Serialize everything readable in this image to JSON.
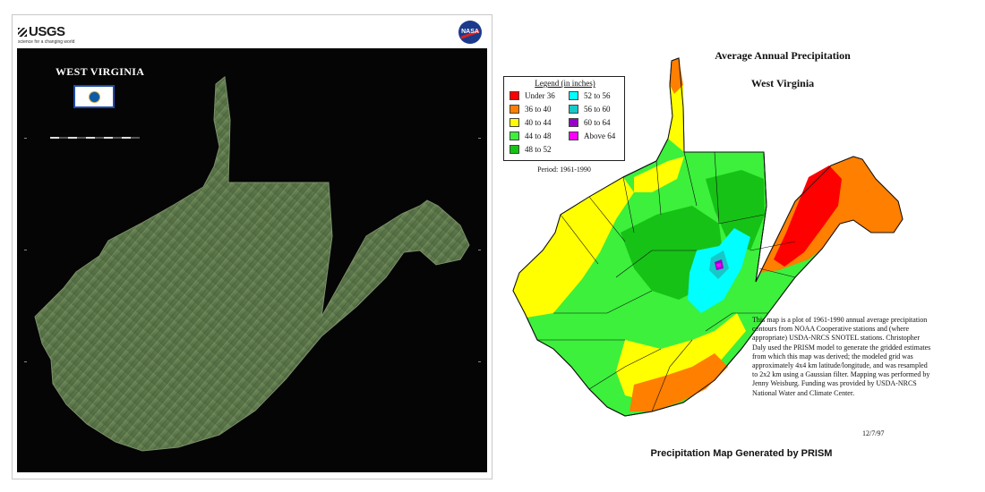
{
  "poster": {
    "usgs_logo": "USGS",
    "usgs_tagline": "science for a changing world",
    "nasa_logo": "NASA",
    "title": "WEST VIRGINIA",
    "flag_icon": "west-virginia-flag-icon",
    "colors": {
      "background": "#050505",
      "land": "#5f7a4e"
    }
  },
  "precip_map": {
    "title": "Average Annual Precipitation",
    "subtitle": "West Virginia",
    "legend": {
      "title": "Legend (in inches)",
      "items": [
        {
          "label": "Under 36",
          "color": "#ff0000"
        },
        {
          "label": "36 to 40",
          "color": "#ff7f00"
        },
        {
          "label": "40 to 44",
          "color": "#ffff00"
        },
        {
          "label": "44 to 48",
          "color": "#3cf03c"
        },
        {
          "label": "48 to 52",
          "color": "#16c216"
        },
        {
          "label": "52 to 56",
          "color": "#00ffff"
        },
        {
          "label": "56 to 60",
          "color": "#16c8c8"
        },
        {
          "label": "60 to 64",
          "color": "#9900cc"
        },
        {
          "label": "Above 64",
          "color": "#ff00ff"
        }
      ]
    },
    "period": "Period: 1961-1990",
    "notes": "This map is a plot of 1961-1990 annual average precipitation contours from NOAA Cooperative stations and (where appropriate) USDA-NRCS SNOTEL stations. Christopher Daly used the PRISM model to generate the gridded estimates from which this map was derived; the modeled grid was approximately 4x4 km latitude/longitude, and was resampled to 2x2 km using a Gaussian filter. Mapping was performed by Jenny Weisburg. Funding was provided by USDA-NRCS National Water and Climate Center.",
    "date": "12/7/97",
    "footer": "Precipitation Map Generated by PRISM"
  }
}
